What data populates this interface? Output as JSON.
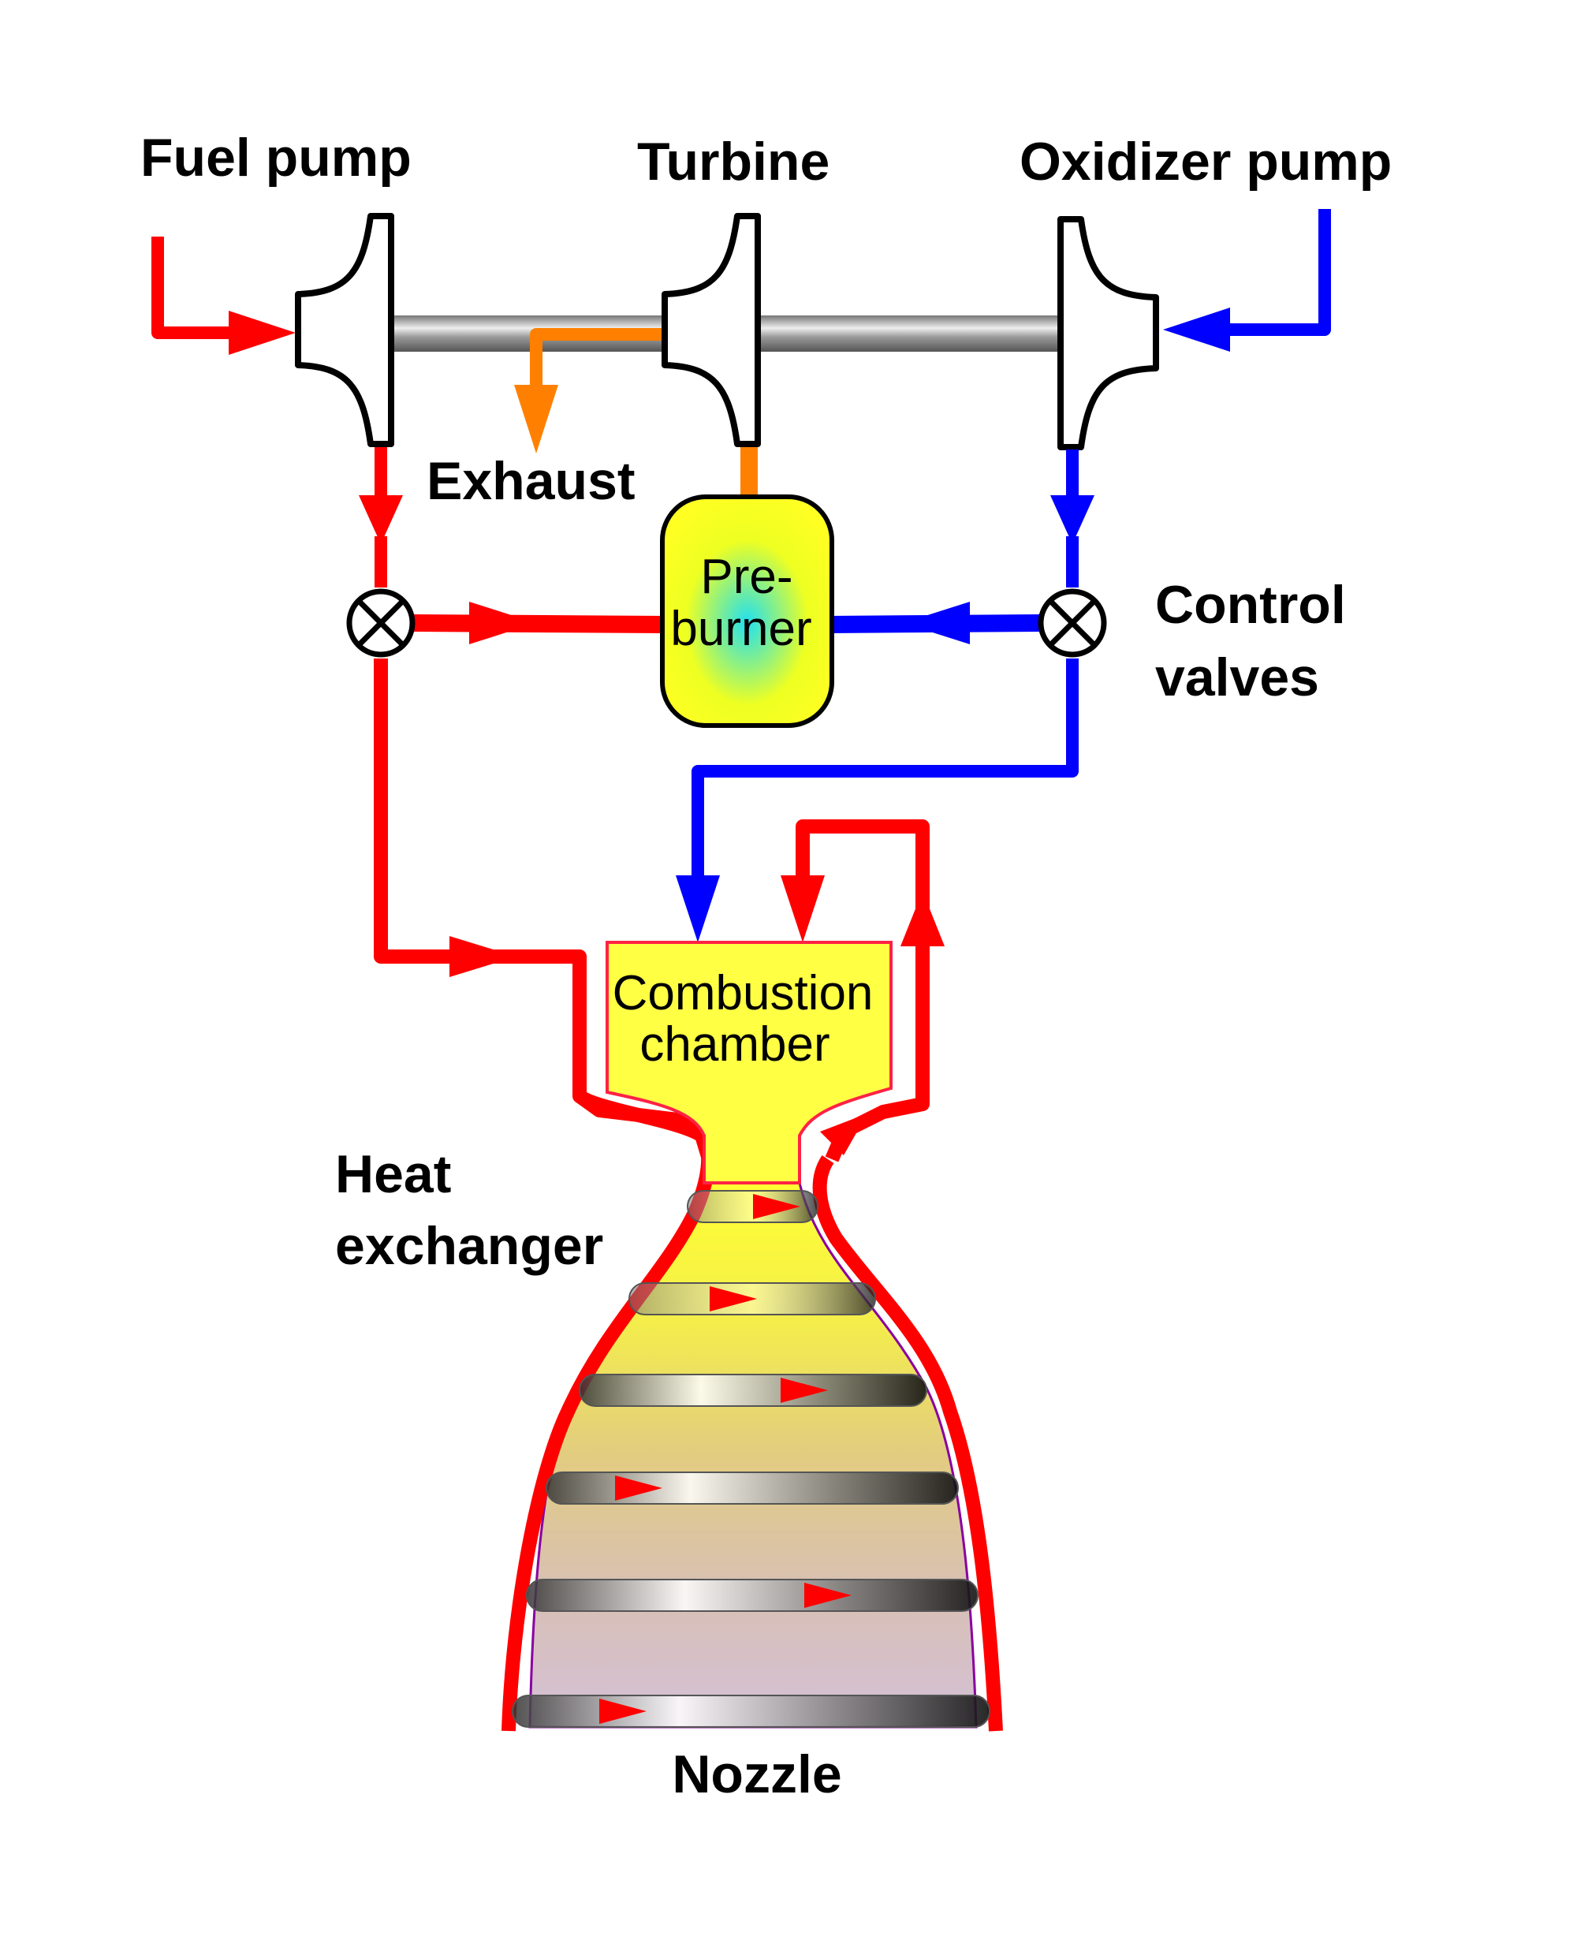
{
  "labels": {
    "fuel_pump": "Fuel pump",
    "turbine": "Turbine",
    "oxidizer_pump": "Oxidizer pump",
    "exhaust": "Exhaust",
    "preburner_line1": "Pre-",
    "preburner_line2": "burner",
    "control_valves_line1": "Control",
    "control_valves_line2": "valves",
    "combustion_line1": "Combustion",
    "combustion_line2": "chamber",
    "heat_exchanger_line1": "Heat",
    "heat_exchanger_line2": "exchanger",
    "nozzle": "Nozzle"
  },
  "colors": {
    "fuel": "#ff0000",
    "oxidizer": "#0000ff",
    "exhaust": "#ff8000",
    "chamber_fill": "#ffff44",
    "outline": "#000000"
  },
  "icons": [
    "centrifugal-pump-icon",
    "turbine-icon",
    "control-valve-icon",
    "flow-arrow-icon"
  ]
}
